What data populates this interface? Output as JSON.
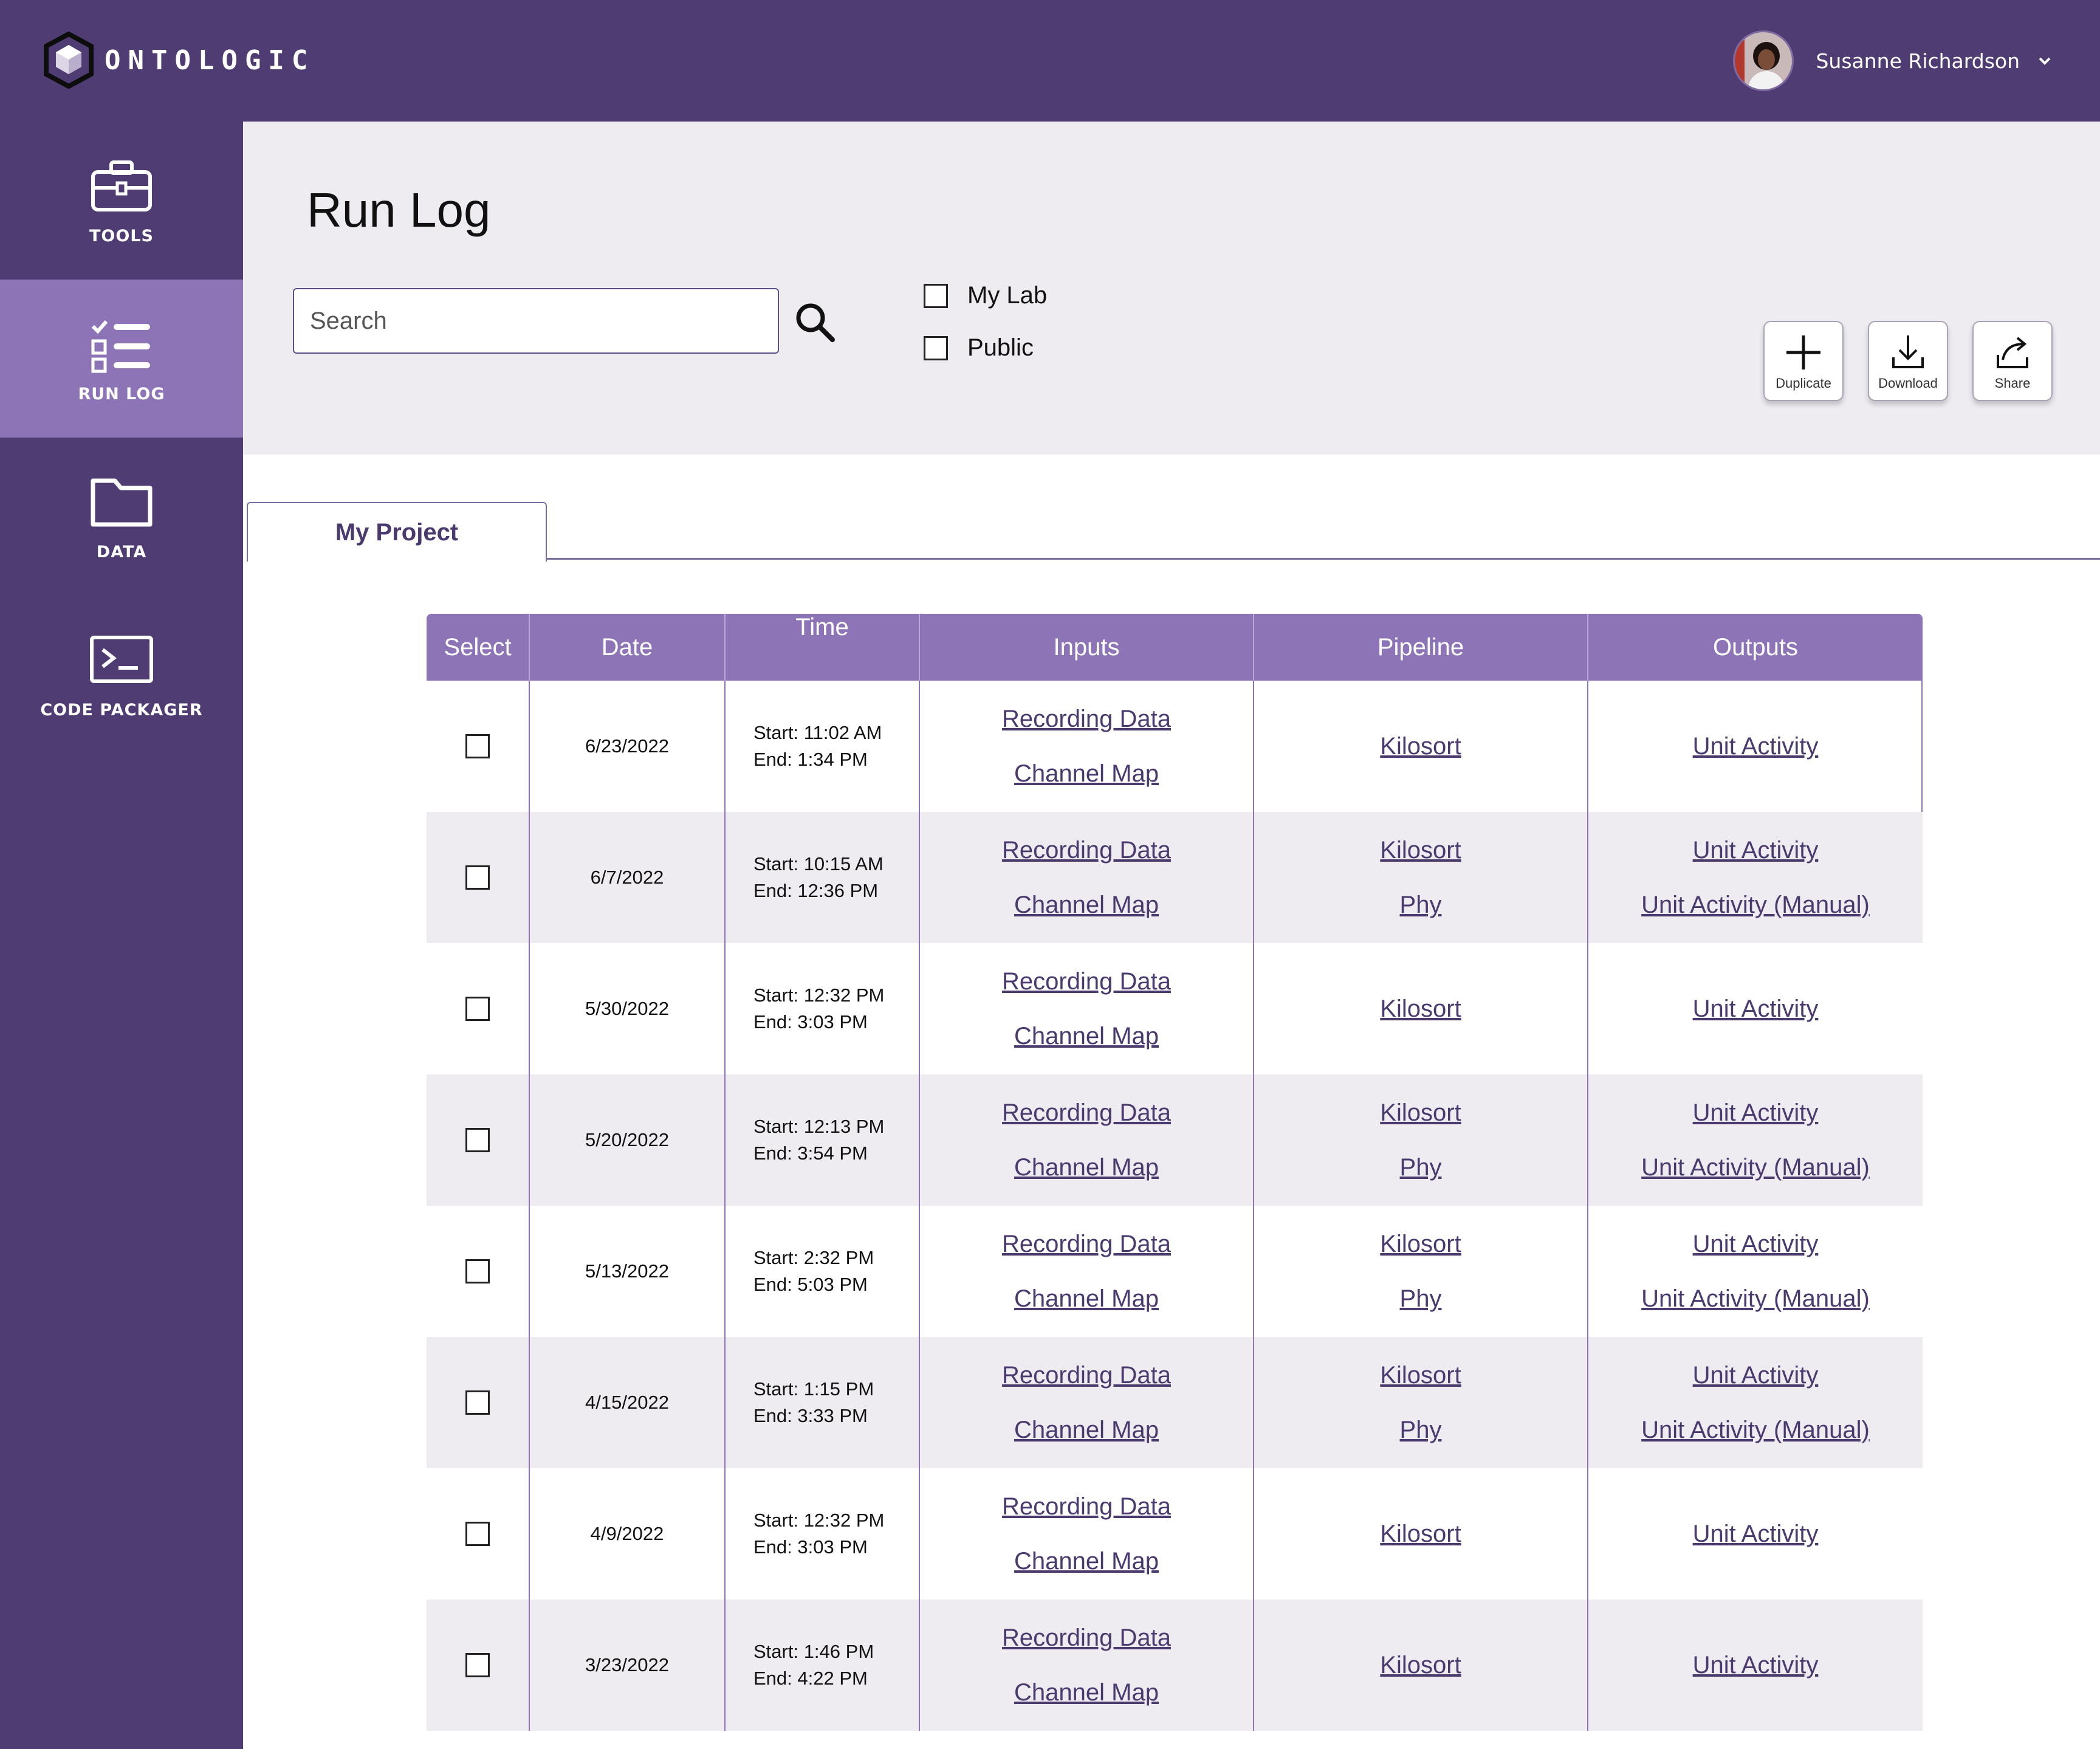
{
  "app": {
    "brand": "ONTOLOGIC",
    "user_name": "Susanne Richardson"
  },
  "sidebar": {
    "items": [
      {
        "label": "TOOLS",
        "icon": "toolbox-icon"
      },
      {
        "label": "RUN LOG",
        "icon": "checklist-icon",
        "active": true
      },
      {
        "label": "DATA",
        "icon": "folder-icon"
      },
      {
        "label": "CODE PACKAGER",
        "icon": "terminal-icon"
      }
    ]
  },
  "header": {
    "title": "Run Log",
    "search_placeholder": "Search",
    "filters": [
      {
        "label": "My Lab",
        "checked": false
      },
      {
        "label": "Public",
        "checked": false
      }
    ],
    "actions": [
      {
        "label": "Duplicate",
        "icon": "plus-icon"
      },
      {
        "label": "Download",
        "icon": "download-icon"
      },
      {
        "label": "Share",
        "icon": "share-icon"
      }
    ]
  },
  "tabs": [
    {
      "label": "My Project",
      "active": true
    }
  ],
  "table": {
    "columns": [
      "Select",
      "Date",
      "Time",
      "Inputs",
      "Pipeline",
      "Outputs"
    ],
    "rows": [
      {
        "date": "6/23/2022",
        "start": "Start: 11:02 AM",
        "end": "End: 1:34 PM",
        "inputs": [
          "Recording Data",
          "Channel Map"
        ],
        "pipeline": [
          "Kilosort"
        ],
        "outputs": [
          "Unit Activity"
        ]
      },
      {
        "date": "6/7/2022",
        "start": "Start: 10:15 AM",
        "end": "End: 12:36 PM",
        "inputs": [
          "Recording Data",
          "Channel Map"
        ],
        "pipeline": [
          "Kilosort",
          "Phy"
        ],
        "outputs": [
          "Unit Activity",
          "Unit Activity (Manual)"
        ]
      },
      {
        "date": "5/30/2022",
        "start": "Start: 12:32 PM",
        "end": "End: 3:03 PM",
        "inputs": [
          "Recording Data",
          "Channel Map"
        ],
        "pipeline": [
          "Kilosort"
        ],
        "outputs": [
          "Unit Activity"
        ]
      },
      {
        "date": "5/20/2022",
        "start": "Start: 12:13 PM",
        "end": "End: 3:54 PM",
        "inputs": [
          "Recording Data",
          "Channel Map"
        ],
        "pipeline": [
          "Kilosort",
          "Phy"
        ],
        "outputs": [
          "Unit Activity",
          "Unit Activity (Manual)"
        ]
      },
      {
        "date": "5/13/2022",
        "start": "Start: 2:32 PM",
        "end": "End: 5:03 PM",
        "inputs": [
          "Recording Data",
          "Channel Map"
        ],
        "pipeline": [
          "Kilosort",
          "Phy"
        ],
        "outputs": [
          "Unit Activity",
          "Unit Activity (Manual)"
        ]
      },
      {
        "date": "4/15/2022",
        "start": "Start: 1:15 PM",
        "end": "End: 3:33 PM",
        "inputs": [
          "Recording Data",
          "Channel Map"
        ],
        "pipeline": [
          "Kilosort",
          "Phy"
        ],
        "outputs": [
          "Unit Activity",
          "Unit Activity (Manual)"
        ]
      },
      {
        "date": "4/9/2022",
        "start": "Start: 12:32 PM",
        "end": "End: 3:03 PM",
        "inputs": [
          "Recording Data",
          "Channel Map"
        ],
        "pipeline": [
          "Kilosort"
        ],
        "outputs": [
          "Unit Activity"
        ]
      },
      {
        "date": "3/23/2022",
        "start": "Start: 1:46 PM",
        "end": "End: 4:22 PM",
        "inputs": [
          "Recording Data",
          "Channel Map"
        ],
        "pipeline": [
          "Kilosort"
        ],
        "outputs": [
          "Unit Activity"
        ]
      }
    ]
  },
  "colors": {
    "topbar": "#4f3c73",
    "sidebar_active": "#8c74b6",
    "header_bg": "#eeebf1",
    "link": "#4a3a6e"
  }
}
